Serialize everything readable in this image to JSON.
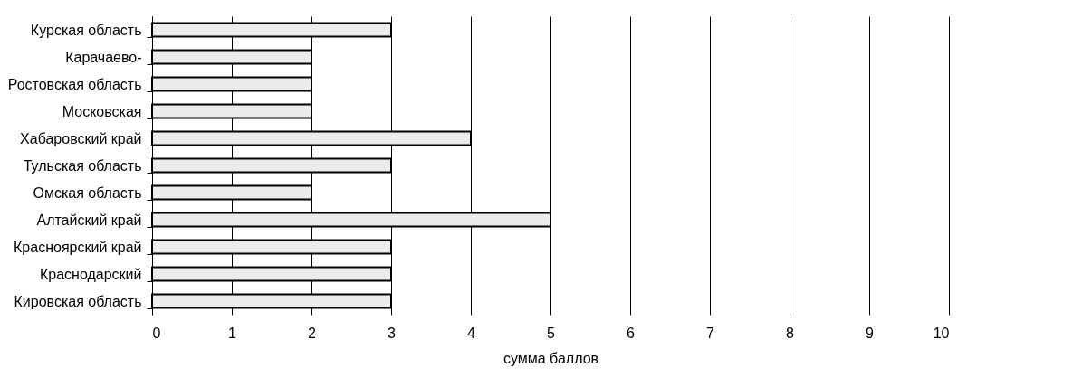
{
  "chart_data": {
    "type": "bar",
    "orientation": "horizontal",
    "xlabel": "сумма баллов",
    "categories": [
      "Курская область",
      "Карачаево-",
      "Ростовская область",
      "Московская",
      "Хабаровский край",
      "Тульская область",
      "Омская область",
      "Алтайский край",
      "Красноярский край",
      "Краснодарский",
      "Кировская область"
    ],
    "values": [
      3,
      2,
      2,
      2,
      4,
      3,
      2,
      5,
      3,
      3,
      3
    ],
    "color": "#ebebeb",
    "xlim": [
      0,
      10
    ],
    "xticks": [
      0,
      1,
      2,
      3,
      4,
      5,
      6,
      7,
      8,
      9,
      10
    ],
    "grid": "x"
  }
}
